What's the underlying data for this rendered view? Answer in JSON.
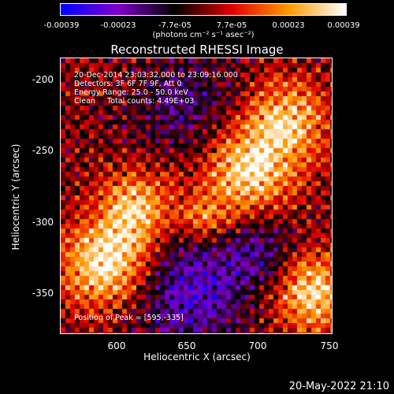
{
  "chart_data": {
    "type": "heatmap",
    "title": "Reconstructed RHESSI Image",
    "xlabel": "Heliocentric X (arcsec)",
    "ylabel": "Heliocentric Y (arcsec)",
    "xlim": [
      557,
      752
    ],
    "ylim": [
      -377,
      -181
    ],
    "xticks": [
      "600",
      "650",
      "700",
      "750"
    ],
    "yticks": [
      "-200",
      "-250",
      "-300",
      "-350"
    ],
    "colorbar": {
      "ticks": [
        "-0.00039",
        "-0.00023",
        "-7.7e-05",
        "7.7e-05",
        "0.00023",
        "0.00039"
      ],
      "units": "(photons cm⁻² s⁻¹ asec⁻²)",
      "range": [
        -0.00039,
        0.00039
      ],
      "colormap": [
        "#0000ff",
        "#7f00c8",
        "#000000",
        "#e00000",
        "#ff9a00",
        "#ffffff"
      ]
    },
    "annotations": [
      "20-Dec-2014 23:03:32.000 to 23:09:16.000",
      "Detectors: 3F 6F 7F 9F, Att 0",
      "Energy Range: 25.0 - 50.0 keV",
      "Clean     Total counts: 4.49E+03"
    ],
    "peak_label": "Position of Peak = [595,-335]",
    "peak_position": [
      595,
      -335
    ],
    "bright_sources": [
      {
        "x": 590,
        "y": -325,
        "sigma": 22,
        "amplitude": 0.00039
      },
      {
        "x": 612,
        "y": -285,
        "sigma": 18,
        "amplitude": 0.0003
      },
      {
        "x": 690,
        "y": -262,
        "sigma": 22,
        "amplitude": 0.00035
      },
      {
        "x": 718,
        "y": -225,
        "sigma": 20,
        "amplitude": 0.0003
      },
      {
        "x": 735,
        "y": -345,
        "sigma": 20,
        "amplitude": 0.00034
      },
      {
        "x": 660,
        "y": -295,
        "sigma": 12,
        "amplitude": 0.0002
      }
    ],
    "dark_regions": [
      {
        "x": 648,
        "y": -345,
        "sigma": 28,
        "amplitude": -0.00026
      },
      {
        "x": 700,
        "y": -318,
        "sigma": 20,
        "amplitude": -0.00018
      },
      {
        "x": 645,
        "y": -215,
        "sigma": 25,
        "amplitude": -0.00015
      }
    ]
  },
  "footer": {
    "date": "20-May-2022 21:10"
  }
}
